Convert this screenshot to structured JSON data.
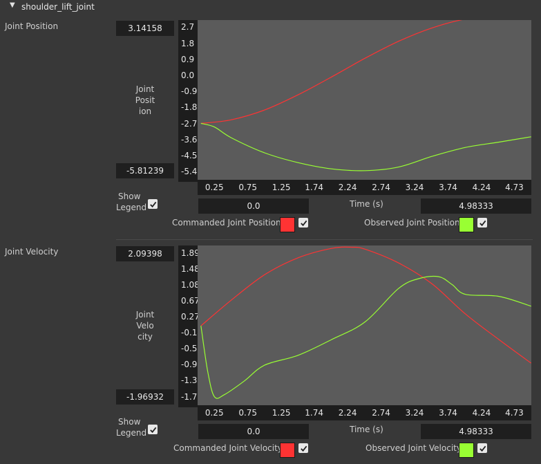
{
  "header": {
    "title": "shoulder_lift_joint"
  },
  "panels": [
    {
      "label": "Joint Position",
      "y_label_lines": [
        "Joint",
        "Posit",
        "ion"
      ],
      "y_max": "3.14158",
      "y_min": "-5.81239",
      "x_start": "0.0",
      "x_end": "4.98333",
      "x_axis_title": "Time (s)",
      "show_legend_label_1": "Show",
      "show_legend_label_2": "Legend",
      "legend": [
        {
          "name": "Commanded Joint Position",
          "color": "#ff3333",
          "checked": true
        },
        {
          "name": "Observed Joint Position",
          "color": "#99ff33",
          "checked": true
        }
      ]
    },
    {
      "label": "Joint Velocity",
      "y_label_lines": [
        "Joint",
        "Velo",
        "city"
      ],
      "y_max": "2.09398",
      "y_min": "-1.96932",
      "x_start": "0.0",
      "x_end": "4.98333",
      "x_axis_title": "Time (s)",
      "show_legend_label_1": "Show",
      "show_legend_label_2": "Legend",
      "legend": [
        {
          "name": "Commanded Joint Velocity",
          "color": "#ff3333",
          "checked": true
        },
        {
          "name": "Observed Joint Velocity",
          "color": "#99ff33",
          "checked": true
        }
      ]
    }
  ],
  "chart_data": [
    {
      "type": "line",
      "xlabel": "Time (s)",
      "ylabel": "Joint Position",
      "xlim": [
        0.0,
        4.98333
      ],
      "ylim": [
        -5.81239,
        3.14158
      ],
      "x_ticks": [
        "0.25",
        "0.75",
        "1.25",
        "1.74",
        "2.24",
        "2.74",
        "3.24",
        "3.74",
        "4.24",
        "4.73"
      ],
      "y_ticks": [
        "2.7",
        "1.8",
        "0.9",
        "0.0",
        "-0.9",
        "-1.8",
        "-2.7",
        "-3.6",
        "-4.5",
        "-5.4"
      ],
      "series": [
        {
          "name": "Commanded Joint Position",
          "color": "#ff3333",
          "x": [
            0.05,
            0.5,
            1.0,
            1.5,
            2.0,
            2.5,
            3.0,
            3.5,
            4.0,
            4.5,
            4.75,
            4.98
          ],
          "y": [
            -2.65,
            -2.45,
            -1.9,
            -1.05,
            -0.05,
            1.0,
            1.95,
            2.7,
            3.2,
            3.4,
            3.44,
            3.3
          ]
        },
        {
          "name": "Observed Joint Position",
          "color": "#99ff33",
          "x": [
            0.05,
            0.25,
            0.5,
            1.0,
            1.5,
            2.0,
            2.5,
            3.0,
            3.5,
            4.0,
            4.5,
            4.98
          ],
          "y": [
            -2.65,
            -2.85,
            -3.45,
            -4.3,
            -4.85,
            -5.2,
            -5.3,
            -5.1,
            -4.5,
            -4.0,
            -3.7,
            -3.4
          ]
        }
      ]
    },
    {
      "type": "line",
      "xlabel": "Time (s)",
      "ylabel": "Joint Velocity",
      "xlim": [
        0.0,
        4.98333
      ],
      "ylim": [
        -1.96932,
        2.09398
      ],
      "x_ticks": [
        "0.25",
        "0.75",
        "1.25",
        "1.74",
        "2.24",
        "2.74",
        "3.24",
        "3.74",
        "4.24",
        "4.73"
      ],
      "y_ticks": [
        "1.89",
        "1.48",
        "1.08",
        "0.67",
        "0.27",
        "-0.14",
        "-0.55",
        "-0.95",
        "-1.36",
        "-1.77"
      ],
      "series": [
        {
          "name": "Commanded Joint Velocity",
          "color": "#ff3333",
          "x": [
            0.05,
            0.5,
            1.0,
            1.5,
            2.0,
            2.3,
            2.5,
            3.0,
            3.5,
            4.0,
            4.5,
            4.98
          ],
          "y": [
            0.05,
            0.7,
            1.35,
            1.78,
            2.02,
            2.05,
            2.0,
            1.65,
            1.12,
            0.35,
            -0.3,
            -0.9
          ]
        },
        {
          "name": "Observed Joint Velocity",
          "color": "#99ff33",
          "x": [
            0.05,
            0.15,
            0.25,
            0.4,
            0.7,
            1.0,
            1.5,
            2.0,
            2.5,
            3.0,
            3.3,
            3.6,
            3.8,
            4.0,
            4.5,
            4.98
          ],
          "y": [
            0.05,
            -1.1,
            -1.75,
            -1.7,
            -1.35,
            -0.95,
            -0.7,
            -0.3,
            0.15,
            1.0,
            1.25,
            1.3,
            1.1,
            0.85,
            0.8,
            0.55
          ]
        }
      ]
    }
  ]
}
